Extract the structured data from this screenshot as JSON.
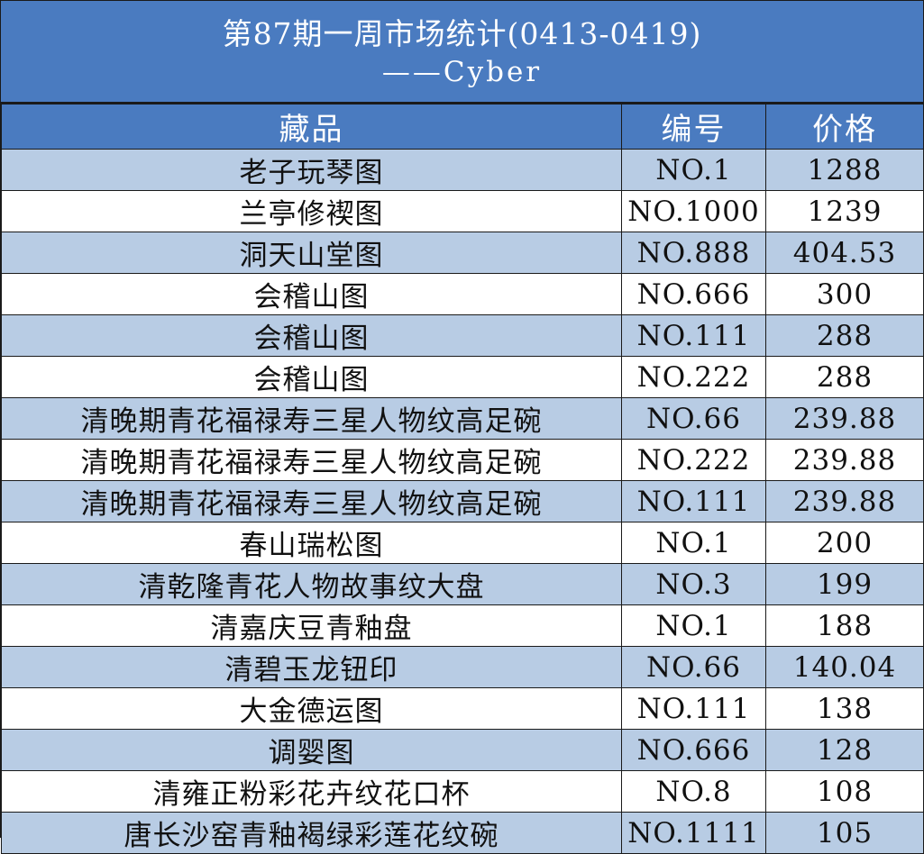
{
  "title": {
    "line1": "第87期一周市场统计(0413-0419)",
    "line2": "——Cyber"
  },
  "headers": {
    "name": "藏品",
    "code": "编号",
    "price": "价格"
  },
  "rows": [
    {
      "name": "老子玩琴图",
      "code": "NO.1",
      "price": "1288"
    },
    {
      "name": "兰亭修褉图",
      "code": "NO.1000",
      "price": "1239"
    },
    {
      "name": "洞天山堂图",
      "code": "NO.888",
      "price": "404.53"
    },
    {
      "name": "会稽山图",
      "code": "NO.666",
      "price": "300"
    },
    {
      "name": "会稽山图",
      "code": "NO.111",
      "price": "288"
    },
    {
      "name": "会稽山图",
      "code": "NO.222",
      "price": "288"
    },
    {
      "name": "清晚期青花福禄寿三星人物纹高足碗",
      "code": "NO.66",
      "price": "239.88"
    },
    {
      "name": "清晚期青花福禄寿三星人物纹高足碗",
      "code": "NO.222",
      "price": "239.88"
    },
    {
      "name": "清晚期青花福禄寿三星人物纹高足碗",
      "code": "NO.111",
      "price": "239.88"
    },
    {
      "name": "春山瑞松图",
      "code": "NO.1",
      "price": "200"
    },
    {
      "name": "清乾隆青花人物故事纹大盘",
      "code": "NO.3",
      "price": "199"
    },
    {
      "name": "清嘉庆豆青釉盘",
      "code": "NO.1",
      "price": "188"
    },
    {
      "name": "清碧玉龙钮印",
      "code": "NO.66",
      "price": "140.04"
    },
    {
      "name": "大金德运图",
      "code": "NO.111",
      "price": "138"
    },
    {
      "name": "调婴图",
      "code": "NO.666",
      "price": "128"
    },
    {
      "name": "清雍正粉彩花卉纹花口杯",
      "code": "NO.8",
      "price": "108"
    },
    {
      "name": "唐长沙窑青釉褐绿彩莲花纹碗",
      "code": "NO.1111",
      "price": "105"
    }
  ],
  "colors": {
    "header_bg": "#4a7bc0",
    "row_alt_bg": "#b8cce4",
    "row_bg": "#ffffff",
    "border": "#1a1a1a"
  }
}
